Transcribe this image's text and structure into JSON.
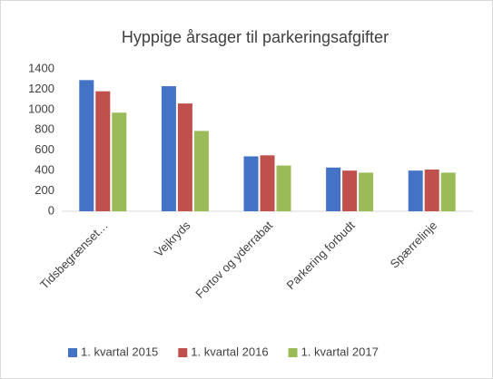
{
  "chart_data": {
    "type": "bar",
    "title": "Hyppige årsager til parkeringsafgifter",
    "categories": [
      "Tidsbegrænset…",
      "Vejkryds",
      "Fortov og yderrabat",
      "Parkering forbudt",
      "Spærrelinje"
    ],
    "series": [
      {
        "name": "1. kvartal 2015",
        "color": "#4472c4",
        "values": [
          1290,
          1230,
          540,
          430,
          400
        ]
      },
      {
        "name": "1. kvartal 2016",
        "color": "#c0504d",
        "values": [
          1180,
          1060,
          550,
          400,
          410
        ]
      },
      {
        "name": "1. kvartal 2017",
        "color": "#9bbb59",
        "values": [
          970,
          790,
          450,
          380,
          380
        ]
      }
    ],
    "ylim": [
      0,
      1400
    ],
    "yticks": [
      0,
      200,
      400,
      600,
      800,
      1000,
      1200,
      1400
    ],
    "grid": false,
    "legend": "bottom"
  }
}
